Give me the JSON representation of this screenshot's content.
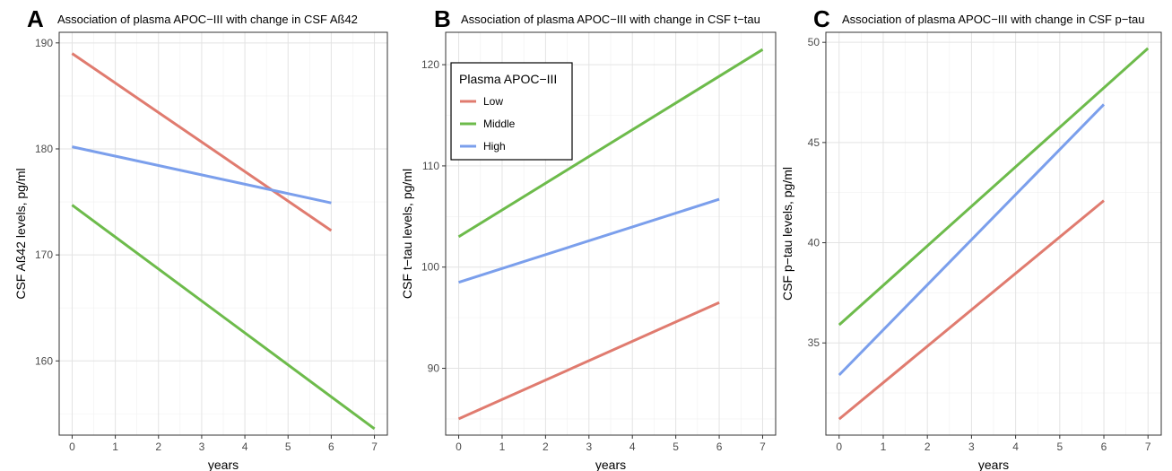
{
  "legend": {
    "title": "Plasma APOC−III",
    "placement": "top-left of panel B",
    "entries": [
      {
        "name": "Low",
        "color": "#E07B6F"
      },
      {
        "name": "Middle",
        "color": "#6DBB4B"
      },
      {
        "name": "High",
        "color": "#7B9FEC"
      }
    ]
  },
  "chart_data": [
    {
      "type": "line",
      "letter": "A",
      "title": "Association of plasma APOC−III with change in CSF Aß42",
      "xlabel": "years",
      "ylabel": "CSF Aß42 levels, pg/ml",
      "xlim": [
        -0.3,
        7.3
      ],
      "ylim": [
        153,
        191
      ],
      "xticks": [
        0,
        1,
        2,
        3,
        4,
        5,
        6,
        7
      ],
      "yticks": [
        160,
        170,
        180,
        190
      ],
      "grid": true,
      "series": [
        {
          "name": "Low",
          "color": "#E07B6F",
          "x": [
            0,
            6
          ],
          "y": [
            189.0,
            172.3
          ]
        },
        {
          "name": "Middle",
          "color": "#6DBB4B",
          "x": [
            0,
            7
          ],
          "y": [
            174.7,
            153.6
          ]
        },
        {
          "name": "High",
          "color": "#7B9FEC",
          "x": [
            0,
            6
          ],
          "y": [
            180.2,
            174.9
          ]
        }
      ]
    },
    {
      "type": "line",
      "letter": "B",
      "title": "Association of plasma APOC−III with change in CSF t−tau",
      "xlabel": "years",
      "ylabel": "CSF t−tau levels, pg/ml",
      "xlim": [
        -0.3,
        7.3
      ],
      "ylim": [
        83.4,
        123.2
      ],
      "xticks": [
        0,
        1,
        2,
        3,
        4,
        5,
        6,
        7
      ],
      "yticks": [
        90,
        100,
        110,
        120
      ],
      "grid": true,
      "series": [
        {
          "name": "Low",
          "color": "#E07B6F",
          "x": [
            0,
            6
          ],
          "y": [
            85.0,
            96.5
          ]
        },
        {
          "name": "Middle",
          "color": "#6DBB4B",
          "x": [
            0,
            7
          ],
          "y": [
            103.0,
            121.5
          ]
        },
        {
          "name": "High",
          "color": "#7B9FEC",
          "x": [
            0,
            6
          ],
          "y": [
            98.5,
            106.7
          ]
        }
      ]
    },
    {
      "type": "line",
      "letter": "C",
      "title": "Association of plasma APOC−III with change in CSF p−tau",
      "xlabel": "years",
      "ylabel": "CSF p−tau levels, pg/ml",
      "xlim": [
        -0.3,
        7.3
      ],
      "ylim": [
        30.4,
        50.5
      ],
      "xticks": [
        0,
        1,
        2,
        3,
        4,
        5,
        6,
        7
      ],
      "yticks": [
        35,
        40,
        45,
        50
      ],
      "grid": true,
      "series": [
        {
          "name": "Low",
          "color": "#E07B6F",
          "x": [
            0,
            6
          ],
          "y": [
            31.2,
            42.1
          ]
        },
        {
          "name": "Middle",
          "color": "#6DBB4B",
          "x": [
            0,
            7
          ],
          "y": [
            35.9,
            49.7
          ]
        },
        {
          "name": "High",
          "color": "#7B9FEC",
          "x": [
            0,
            6
          ],
          "y": [
            33.4,
            46.9
          ]
        }
      ]
    }
  ]
}
